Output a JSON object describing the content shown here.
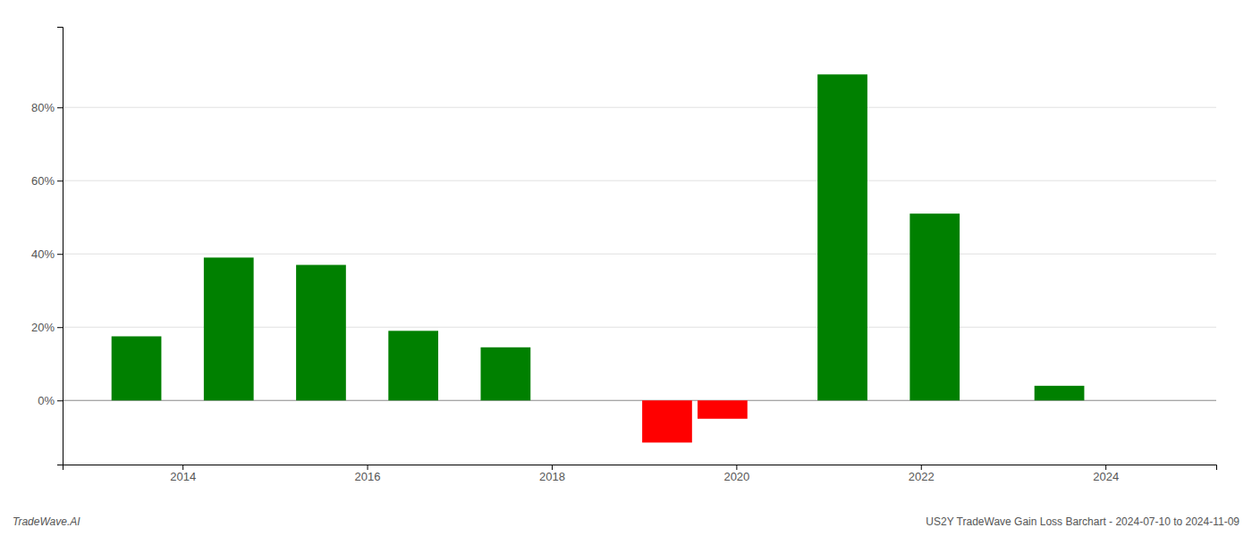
{
  "chart_data": {
    "type": "bar",
    "x": [
      2013.5,
      2014.5,
      2015.5,
      2016.5,
      2017.5,
      2019.25,
      2019.85,
      2021.15,
      2022.15,
      2023.5
    ],
    "values": [
      0.175,
      0.39,
      0.37,
      0.19,
      0.145,
      -0.115,
      -0.05,
      0.89,
      0.51,
      0.04
    ],
    "colors": [
      "#008000",
      "#008000",
      "#008000",
      "#008000",
      "#008000",
      "#ff0000",
      "#ff0000",
      "#008000",
      "#008000",
      "#008000"
    ],
    "xlim": [
      2012.7,
      2025.2
    ],
    "xticks": [
      2014,
      2016,
      2018,
      2020,
      2022,
      2024
    ],
    "ylim": [
      -0.175,
      1.02
    ],
    "yticks": [
      {
        "value": 0.0,
        "label": "0%"
      },
      {
        "value": 0.2,
        "label": "20%"
      },
      {
        "value": 0.4,
        "label": "40%"
      },
      {
        "value": 0.6,
        "label": "60%"
      },
      {
        "value": 0.8,
        "label": "80%"
      }
    ],
    "grid": true,
    "annotations": [
      "TradeWave.AI",
      "US2Y TradeWave Gain Loss Barchart - 2024-07-10 to 2024-11-09"
    ]
  }
}
